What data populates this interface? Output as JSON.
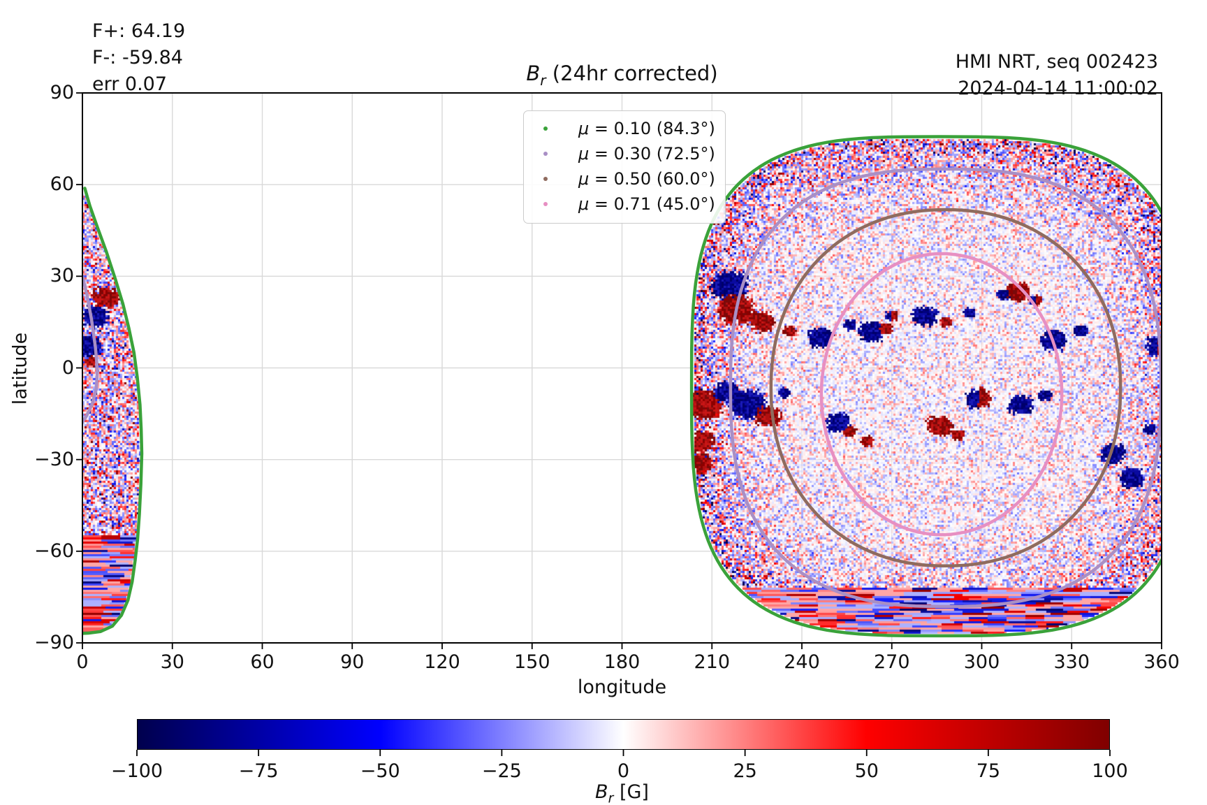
{
  "annotations": {
    "flux_positive": "F+: 64.19",
    "flux_negative": "F-: -59.84",
    "error": "err 0.07",
    "instrument": "HMI NRT, seq 002423",
    "timestamp": "2024-04-14 11:00:02"
  },
  "title": {
    "symbol": "B",
    "subscript": "r",
    "rest": " (24hr corrected)"
  },
  "axes": {
    "xlabel": "longitude",
    "ylabel": "latitude",
    "xlim": [
      0,
      360
    ],
    "ylim": [
      -90,
      90
    ],
    "x_tick_values": [
      0,
      30,
      60,
      90,
      120,
      150,
      180,
      210,
      240,
      270,
      300,
      330,
      360
    ],
    "x_tick_labels": [
      "0",
      "30",
      "60",
      "90",
      "120",
      "150",
      "180",
      "210",
      "240",
      "270",
      "300",
      "330",
      "360"
    ],
    "y_tick_values": [
      90,
      60,
      30,
      0,
      -30,
      -60,
      -90
    ],
    "y_tick_labels": [
      "90",
      "60",
      "30",
      "0",
      "−30",
      "−60",
      "−90"
    ],
    "grid": "on",
    "grid_color": "#d9d9d9"
  },
  "legend": {
    "position": "upper center-left of disk",
    "entries": [
      {
        "mu": "μ",
        "text": " = 0.10 (84.3°)",
        "value": 0.1,
        "angle": "84.3°",
        "color": "#3aa23a"
      },
      {
        "mu": "μ",
        "text": " = 0.30 (72.5°)",
        "value": 0.3,
        "angle": "72.5°",
        "color": "#a98fc5"
      },
      {
        "mu": "μ",
        "text": " = 0.50 (60.0°)",
        "value": 0.5,
        "angle": "60.0°",
        "color": "#8f6b5e"
      },
      {
        "mu": "μ",
        "text": " = 0.71 (45.0°)",
        "value": 0.71,
        "angle": "45.0°",
        "color": "#e78fc2"
      }
    ]
  },
  "colorbar": {
    "label_symbol": "B",
    "label_sub": "r",
    "label_rest": " [G]",
    "min": -100,
    "max": 100,
    "tick_values": [
      -100,
      -75,
      -50,
      -25,
      0,
      25,
      50,
      75,
      100
    ],
    "tick_labels": [
      "−100",
      "−75",
      "−50",
      "−25",
      "0",
      "25",
      "50",
      "75",
      "100"
    ],
    "colormap_stops": [
      [
        "#00004d",
        0
      ],
      [
        "#0000ff",
        0.25
      ],
      [
        "#ffffff",
        0.5
      ],
      [
        "#ff0000",
        0.75
      ],
      [
        "#800000",
        1
      ]
    ]
  },
  "chart_data": {
    "type": "heatmap",
    "title": "Br (24hr corrected)",
    "xlabel": "longitude",
    "ylabel": "latitude",
    "xlim": [
      0,
      360
    ],
    "ylim": [
      -90,
      90
    ],
    "value_label": "Br [G]",
    "value_range": [
      -100,
      100
    ],
    "description": "Solar HMI near-real-time radial magnetic field synoptic map; speckled positive (red) / negative (blue) flux noise covering two disk segments, pale near disk centre and saturated near the limb, with horizontal streak artifacts near the south pole.",
    "disk_segments": [
      {
        "name": "wrapped-left-sliver",
        "lon_range": [
          0,
          19.8
        ],
        "lat_range": [
          -86.9,
          58.8
        ],
        "boundary_color": "#3aa23a",
        "boundary_polyline_lon_lat": [
          [
            0.8,
            58.8
          ],
          [
            2.5,
            53
          ],
          [
            5,
            46
          ],
          [
            8,
            38
          ],
          [
            11,
            29
          ],
          [
            13.5,
            21
          ],
          [
            15.5,
            13
          ],
          [
            17.2,
            5
          ],
          [
            18.3,
            -3
          ],
          [
            19.2,
            -12
          ],
          [
            19.6,
            -20
          ],
          [
            19.8,
            -28
          ],
          [
            19.5,
            -38
          ],
          [
            19.0,
            -48
          ],
          [
            18.4,
            -56
          ],
          [
            17.6,
            -63
          ],
          [
            16.6,
            -70
          ],
          [
            15.2,
            -76
          ],
          [
            13,
            -81
          ],
          [
            10,
            -84.5
          ],
          [
            6,
            -86.3
          ],
          [
            2,
            -86.8
          ],
          [
            0.2,
            -86.9
          ]
        ],
        "inner_contour_mu030_polyline": [
          [
            0.15,
            29.5
          ],
          [
            1.5,
            24
          ],
          [
            3,
            16
          ],
          [
            4.3,
            7
          ],
          [
            5,
            -1
          ],
          [
            4.6,
            -7
          ],
          [
            3.2,
            -12
          ],
          [
            1.2,
            -16
          ],
          [
            0.1,
            -17.5
          ]
        ]
      },
      {
        "name": "main-disk",
        "lon_range": [
          205,
          360
        ],
        "lat_range": [
          -87,
          78.5
        ]
      }
    ],
    "mu_contours": [
      {
        "mu": 0.1,
        "angle_deg": 84.3,
        "color": "#3aa23a",
        "center": [
          285.9,
          -6.0
        ],
        "r_lon_lat": [
          82.7,
          81.7
        ],
        "squareness": 3.3
      },
      {
        "mu": 0.3,
        "angle_deg": 72.5,
        "color": "#a98fc5",
        "center": [
          288.0,
          -6.5
        ],
        "r_lon_lat": [
          71.8,
          71.6
        ],
        "squareness": 2.6
      },
      {
        "mu": 0.5,
        "angle_deg": 60.0,
        "color": "#8f6b5e",
        "center": [
          288.0,
          -6.5
        ],
        "r_lon_lat": [
          58.3,
          58.3
        ],
        "squareness": 2.15
      },
      {
        "mu": 0.71,
        "angle_deg": 45.0,
        "color": "#e78fc2",
        "center": [
          286.6,
          -8.6
        ],
        "r_lon_lat": [
          40.1,
          46.0
        ],
        "squareness": 2.0
      }
    ],
    "active_regions": [
      {
        "lon": 216,
        "lat": 27,
        "polarity": -1,
        "size": 3
      },
      {
        "lon": 218,
        "lat": 19,
        "polarity": 1,
        "size": 3
      },
      {
        "lon": 227,
        "lat": 15,
        "polarity": 1,
        "size": 2
      },
      {
        "lon": 236,
        "lat": 12,
        "polarity": 1,
        "size": 1
      },
      {
        "lon": 246,
        "lat": 10,
        "polarity": -1,
        "size": 2
      },
      {
        "lon": 256,
        "lat": 14,
        "polarity": -1,
        "size": 1
      },
      {
        "lon": 263,
        "lat": 12,
        "polarity": -1,
        "size": 2
      },
      {
        "lon": 268,
        "lat": 13,
        "polarity": 1,
        "size": 1
      },
      {
        "lon": 270,
        "lat": 17,
        "polarity": 0,
        "size": 1
      },
      {
        "lon": 281,
        "lat": 17,
        "polarity": -1,
        "size": 2
      },
      {
        "lon": 288,
        "lat": 15,
        "polarity": 1,
        "size": 1
      },
      {
        "lon": 296,
        "lat": 18,
        "polarity": -1,
        "size": 1
      },
      {
        "lon": 312,
        "lat": 25,
        "polarity": 1,
        "size": 2
      },
      {
        "lon": 307,
        "lat": 24,
        "polarity": -1,
        "size": 1
      },
      {
        "lon": 318,
        "lat": 22,
        "polarity": 0,
        "size": 1
      },
      {
        "lon": 324,
        "lat": 9,
        "polarity": -1,
        "size": 2
      },
      {
        "lon": 333,
        "lat": 12,
        "polarity": -1,
        "size": 1
      },
      {
        "lon": 359,
        "lat": 7,
        "polarity": 0,
        "size": 2
      },
      {
        "lon": 207,
        "lat": -12,
        "polarity": 1,
        "size": 3
      },
      {
        "lon": 207,
        "lat": -24,
        "polarity": 1,
        "size": 2
      },
      {
        "lon": 206,
        "lat": -31,
        "polarity": 1,
        "size": 2
      },
      {
        "lon": 215,
        "lat": -8,
        "polarity": -1,
        "size": 2
      },
      {
        "lon": 222,
        "lat": -12,
        "polarity": -1,
        "size": 3
      },
      {
        "lon": 229,
        "lat": -16,
        "polarity": 1,
        "size": 2
      },
      {
        "lon": 234,
        "lat": -8,
        "polarity": -1,
        "size": 1
      },
      {
        "lon": 252,
        "lat": -18,
        "polarity": -1,
        "size": 2
      },
      {
        "lon": 256,
        "lat": -21,
        "polarity": 1,
        "size": 1
      },
      {
        "lon": 262,
        "lat": -24,
        "polarity": 1,
        "size": 1
      },
      {
        "lon": 286,
        "lat": -19,
        "polarity": 1,
        "size": 2
      },
      {
        "lon": 292,
        "lat": -22,
        "polarity": 1,
        "size": 1
      },
      {
        "lon": 299,
        "lat": -10,
        "polarity": 0,
        "size": 2
      },
      {
        "lon": 313,
        "lat": -12,
        "polarity": -1,
        "size": 2
      },
      {
        "lon": 321,
        "lat": -9,
        "polarity": -1,
        "size": 1
      },
      {
        "lon": 344,
        "lat": -28,
        "polarity": -1,
        "size": 2
      },
      {
        "lon": 350,
        "lat": -36,
        "polarity": -1,
        "size": 2
      },
      {
        "lon": 356,
        "lat": -20,
        "polarity": -1,
        "size": 1
      },
      {
        "lon": 8,
        "lat": 23,
        "polarity": 1,
        "size": 2
      },
      {
        "lon": 4,
        "lat": 17,
        "polarity": -1,
        "size": 2
      },
      {
        "lon": 2,
        "lat": 7,
        "polarity": -1,
        "size": 2
      },
      {
        "lon": 3,
        "lat": 2,
        "polarity": 1,
        "size": 1
      }
    ],
    "noise": {
      "style": "pixel speckle, ±Br, amplitude grows toward limb",
      "polar_striation_lat_threshold_main": -72,
      "polar_striation_lat_threshold_sliver": -55,
      "negative_anchor": "#0000ff",
      "negative_dark": "#00004d",
      "positive_anchor": "#ff0000",
      "positive_dark": "#800000"
    },
    "legend_position": "upper left of main disk",
    "colorbar_orientation": "horizontal bottom"
  }
}
